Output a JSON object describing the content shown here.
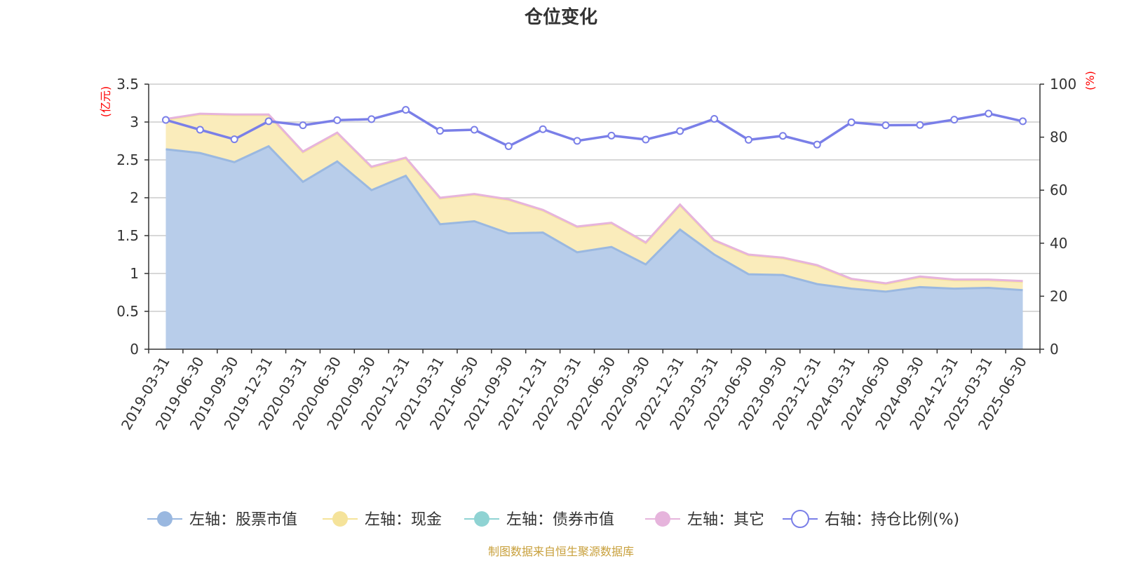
{
  "title": "仓位变化",
  "source_note": "制图数据来自恒生聚源数据库",
  "left_axis_unit": "(亿元)",
  "right_axis_unit": "(%)",
  "colors": {
    "stock": "#9ab8e0",
    "stock_fill": "#b8cdea",
    "cash": "#f5e39a",
    "cash_fill": "#faecbb",
    "bond": "#8fd3d3",
    "other": "#e6b4dc",
    "ratio": "#7a7fe8",
    "axis": "#333333",
    "grid": "#cccccc",
    "unit": "#ff0000",
    "source": "#c8a03c"
  },
  "chart_data": {
    "type": "area",
    "categories": [
      "2019-03-31",
      "2019-06-30",
      "2019-09-30",
      "2019-12-31",
      "2020-03-31",
      "2020-06-30",
      "2020-09-30",
      "2020-12-31",
      "2021-03-31",
      "2021-06-30",
      "2021-09-30",
      "2021-12-31",
      "2022-03-31",
      "2022-06-30",
      "2022-09-30",
      "2022-12-31",
      "2023-03-31",
      "2023-06-30",
      "2023-09-30",
      "2023-12-31",
      "2024-03-31",
      "2024-06-30",
      "2024-09-30",
      "2024-12-31",
      "2025-03-31",
      "2025-06-30"
    ],
    "left_axis": {
      "ylim": [
        0,
        3.5
      ],
      "ticks": [
        "0",
        "0.5",
        "1",
        "1.5",
        "2",
        "2.5",
        "3",
        "3.5"
      ]
    },
    "right_axis": {
      "ylim": [
        0,
        100
      ],
      "ticks": [
        "0",
        "20",
        "40",
        "60",
        "80",
        "100"
      ]
    },
    "series": [
      {
        "name": "左轴：股票市值",
        "axis": "left",
        "stacked": true,
        "values": [
          2.64,
          2.59,
          2.47,
          2.68,
          2.21,
          2.48,
          2.1,
          2.29,
          1.65,
          1.69,
          1.53,
          1.54,
          1.28,
          1.35,
          1.12,
          1.58,
          1.25,
          0.99,
          0.98,
          0.86,
          0.8,
          0.76,
          0.82,
          0.8,
          0.81,
          0.78
        ]
      },
      {
        "name": "左轴：现金",
        "axis": "left",
        "stacked": true,
        "values": [
          0.39,
          0.51,
          0.62,
          0.41,
          0.39,
          0.37,
          0.3,
          0.23,
          0.34,
          0.35,
          0.44,
          0.29,
          0.33,
          0.31,
          0.28,
          0.32,
          0.18,
          0.25,
          0.22,
          0.24,
          0.12,
          0.1,
          0.13,
          0.11,
          0.1,
          0.11
        ]
      },
      {
        "name": "左轴：债券市值",
        "axis": "left",
        "stacked": true,
        "values": [
          0,
          0,
          0,
          0,
          0,
          0,
          0,
          0,
          0,
          0,
          0,
          0,
          0,
          0,
          0,
          0,
          0,
          0,
          0,
          0,
          0,
          0,
          0,
          0,
          0,
          0
        ]
      },
      {
        "name": "左轴：其它",
        "axis": "left",
        "stacked": true,
        "values": [
          0.01,
          0.01,
          0.01,
          0.01,
          0.01,
          0.01,
          0.01,
          0.01,
          0.01,
          0.01,
          0.01,
          0.01,
          0.01,
          0.01,
          0.01,
          0.01,
          0.01,
          0.01,
          0.01,
          0.01,
          0.01,
          0.01,
          0.01,
          0.01,
          0.01,
          0.01
        ]
      },
      {
        "name": "右轴：持仓比例(%)",
        "axis": "right",
        "stacked": false,
        "values": [
          86.5,
          82.8,
          79.2,
          86.0,
          84.5,
          86.4,
          86.8,
          90.3,
          82.4,
          82.8,
          76.6,
          83.0,
          78.6,
          80.6,
          79.1,
          82.3,
          86.9,
          79.0,
          80.5,
          77.2,
          85.6,
          84.5,
          84.6,
          86.6,
          88.9,
          86.0
        ]
      }
    ],
    "legend_position": "bottom",
    "grid": true
  }
}
